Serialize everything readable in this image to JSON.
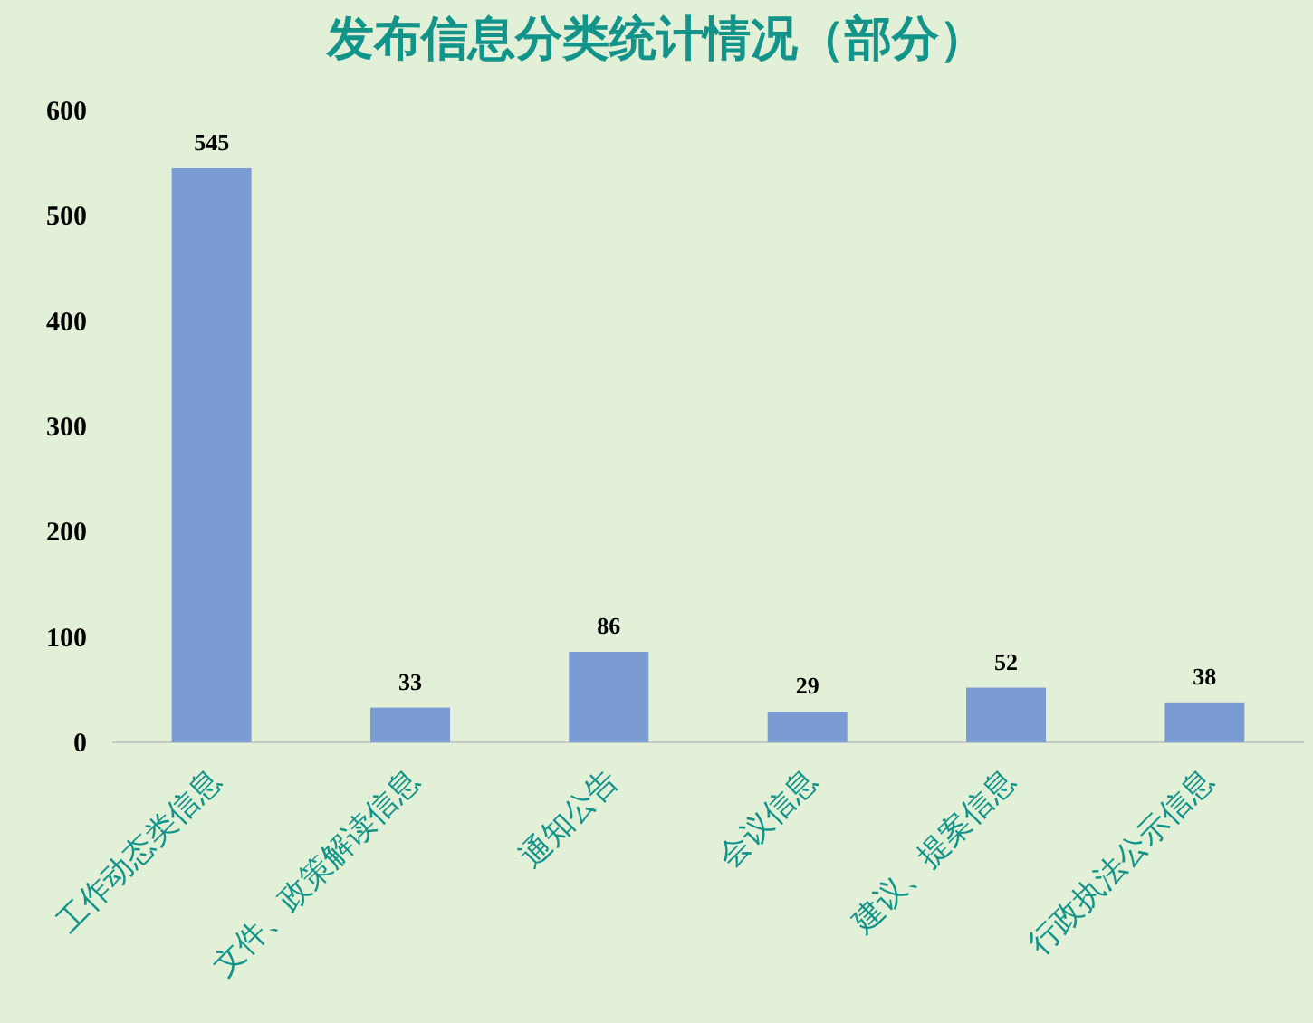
{
  "chart_data": {
    "type": "bar",
    "title": "发布信息分类统计情况（部分）",
    "categories": [
      "工作动态类信息",
      "文件、政策解读信息",
      "通知公告",
      "会议信息",
      "建议、提案信息",
      "行政执法公示信息"
    ],
    "values": [
      545,
      33,
      86,
      29,
      52,
      38
    ],
    "color": "#7b9bd3",
    "ylim": [
      0,
      600
    ],
    "yticks": [
      0,
      100,
      200,
      300,
      400,
      500,
      600
    ],
    "data_labels": true
  }
}
